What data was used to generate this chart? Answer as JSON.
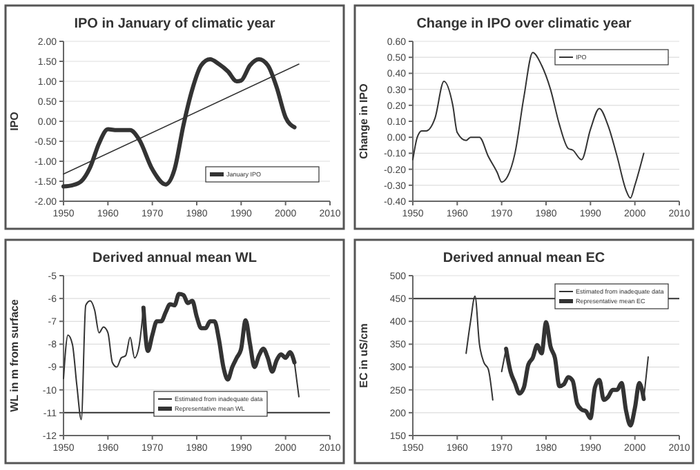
{
  "chart_data": [
    {
      "type": "line",
      "title": "IPO in January of climatic year",
      "ylabel": "IPO",
      "xlim": [
        1950,
        2010
      ],
      "xticks": [
        1950,
        1960,
        1970,
        1980,
        1990,
        2000,
        2010
      ],
      "ylim": [
        -2,
        2
      ],
      "yticks": [
        {
          "value": -2,
          "label": "-2.00"
        },
        {
          "value": -1.5,
          "label": "-1.50"
        },
        {
          "value": -1,
          "label": "-1.00"
        },
        {
          "value": -0.5,
          "label": "-0.50"
        },
        {
          "value": 0,
          "label": "0.00"
        },
        {
          "value": 0.5,
          "label": "0.50"
        },
        {
          "value": 1,
          "label": "1.00"
        },
        {
          "value": 1.5,
          "label": "1.50"
        },
        {
          "value": 2,
          "label": "2.00"
        }
      ],
      "grid": "y",
      "legend": "bottom right",
      "marker": "none",
      "series": [
        {
          "name": "January IPO",
          "color": "#333333",
          "x": [
            1950,
            1952,
            1954,
            1956,
            1958,
            1960,
            1962,
            1965,
            1967,
            1970,
            1973,
            1975,
            1977,
            1979,
            1981,
            1983,
            1985,
            1987,
            1989,
            1990,
            1992,
            1994,
            1996,
            1998,
            2000,
            2002
          ],
          "values": [
            -1.63,
            -1.6,
            -1.5,
            -1.15,
            -0.55,
            -0.2,
            -0.22,
            -0.22,
            -0.45,
            -1.2,
            -1.58,
            -1.2,
            -0.1,
            0.8,
            1.4,
            1.55,
            1.43,
            1.25,
            1.0,
            1.02,
            1.4,
            1.55,
            1.4,
            0.85,
            0.1,
            -0.15
          ]
        },
        {
          "type": "line",
          "color": "#333333",
          "x": [
            1950,
            2003
          ],
          "values": [
            -1.32,
            1.43
          ]
        }
      ]
    },
    {
      "type": "line",
      "title": "Change in IPO over climatic year",
      "ylabel": "Change in IPO",
      "xlim": [
        1950,
        2010
      ],
      "xticks": [
        1950,
        1960,
        1970,
        1980,
        1990,
        2000,
        2010
      ],
      "ylim": [
        -0.4,
        0.6
      ],
      "yticks": [
        {
          "value": -0.4,
          "label": "-0.40"
        },
        {
          "value": -0.3,
          "label": "-0.30"
        },
        {
          "value": -0.2,
          "label": "-0.20"
        },
        {
          "value": -0.1,
          "label": "-0.10"
        },
        {
          "value": 0,
          "label": "0.00"
        },
        {
          "value": 0.1,
          "label": "0.10"
        },
        {
          "value": 0.2,
          "label": "0.20"
        },
        {
          "value": 0.3,
          "label": "0.30"
        },
        {
          "value": 0.4,
          "label": "0.40"
        },
        {
          "value": 0.5,
          "label": "0.50"
        },
        {
          "value": 0.6,
          "label": "0.60"
        }
      ],
      "grid": "y",
      "legend": "top right",
      "marker": "none",
      "series": [
        {
          "name": "IPO",
          "color": "#333333",
          "x": [
            1950,
            1951,
            1952,
            1953,
            1955,
            1957,
            1959,
            1960,
            1962,
            1963,
            1965,
            1967,
            1969,
            1970,
            1971,
            1973,
            1975,
            1977,
            1979,
            1981,
            1983,
            1985,
            1986,
            1988,
            1990,
            1992,
            1994,
            1996,
            1998,
            1999,
            2000,
            2002
          ],
          "values": [
            -0.14,
            0.0,
            0.04,
            0.04,
            0.12,
            0.35,
            0.2,
            0.03,
            -0.02,
            0.0,
            0.0,
            -0.12,
            -0.22,
            -0.28,
            -0.26,
            -0.1,
            0.25,
            0.53,
            0.45,
            0.3,
            0.08,
            -0.07,
            -0.08,
            -0.14,
            0.05,
            0.18,
            0.07,
            -0.12,
            -0.33,
            -0.38,
            -0.3,
            -0.1
          ]
        }
      ]
    },
    {
      "type": "line",
      "title": "Derived annual mean WL",
      "ylabel": "WL in m from surface",
      "xlim": [
        1950,
        2010
      ],
      "xticks": [
        1950,
        1960,
        1970,
        1980,
        1990,
        2000,
        2010
      ],
      "ylim": [
        -12,
        -5
      ],
      "yticks": [
        -12,
        -11,
        -10,
        -9,
        -8,
        -7,
        -6,
        -5
      ],
      "grid": "y",
      "legend": "bottom",
      "marker": "none",
      "ref_lines": [
        {
          "axis": "y",
          "value": -11,
          "color": "#333333"
        }
      ],
      "series": [
        {
          "name": "Estimated from inadequate data",
          "color": "#333333",
          "x": [
            1950,
            1951,
            1952,
            1953,
            1954,
            1955,
            1956,
            1957,
            1958,
            1959,
            1960,
            1961,
            1962,
            1963,
            1964,
            1965,
            1966,
            1967,
            1968,
            1969,
            2002,
            2003
          ],
          "values": [
            -9.5,
            -7.6,
            -8.0,
            -9.8,
            -11.3,
            -6.3,
            -6.1,
            -6.5,
            -7.5,
            -7.25,
            -7.5,
            -8.8,
            -9.0,
            -8.6,
            -8.5,
            -7.7,
            -8.6,
            -8.1,
            -6.4,
            null,
            -8.8,
            -10.3
          ]
        },
        {
          "name": "Representative mean WL",
          "color": "#333333",
          "x": [
            1968,
            1969,
            1970,
            1971,
            1972,
            1973,
            1974,
            1975,
            1976,
            1977,
            1978,
            1979,
            1980,
            1981,
            1982,
            1983,
            1984,
            1985,
            1986,
            1987,
            1988,
            1989,
            1990,
            1991,
            1992,
            1993,
            1994,
            1995,
            1996,
            1997,
            1998,
            1999,
            2000,
            2001,
            2002
          ],
          "values": [
            -6.4,
            -8.3,
            -7.6,
            -7.0,
            -7.0,
            -6.6,
            -6.25,
            -6.3,
            -5.8,
            -5.85,
            -6.2,
            -6.1,
            -6.8,
            -7.3,
            -7.3,
            -7.0,
            -7.0,
            -7.8,
            -9.0,
            -9.55,
            -9.0,
            -8.6,
            -8.2,
            -6.95,
            -8.0,
            -9.0,
            -8.5,
            -8.2,
            -8.6,
            -9.2,
            -8.7,
            -8.45,
            -8.6,
            -8.35,
            -8.8
          ]
        }
      ]
    },
    {
      "type": "line",
      "title": "Derived annual mean EC",
      "ylabel": "EC in uS/cm",
      "xlim": [
        1950,
        2010
      ],
      "xticks": [
        1950,
        1960,
        1970,
        1980,
        1990,
        2000,
        2010
      ],
      "ylim": [
        150,
        500
      ],
      "yticks": [
        150,
        200,
        250,
        300,
        350,
        400,
        450,
        500
      ],
      "grid": "y",
      "legend": "top right",
      "marker": "none",
      "ref_lines": [
        {
          "axis": "y",
          "value": 450,
          "color": "#333333"
        }
      ],
      "series": [
        {
          "name": "Estimated from inadequate data",
          "color": "#333333",
          "x": [
            1962,
            1963,
            1964,
            1965,
            1966,
            1967,
            1968,
            1969,
            1970,
            1971,
            1972,
            2002,
            2003
          ],
          "values": [
            330,
            400,
            455,
            350,
            310,
            295,
            228,
            null,
            290,
            340,
            null,
            230,
            322
          ]
        },
        {
          "name": "Representative mean EC",
          "color": "#333333",
          "x": [
            1971,
            1972,
            1973,
            1974,
            1975,
            1976,
            1977,
            1978,
            1979,
            1980,
            1981,
            1982,
            1983,
            1984,
            1985,
            1986,
            1987,
            1988,
            1989,
            1990,
            1991,
            1992,
            1993,
            1994,
            1995,
            1996,
            1997,
            1998,
            1999,
            2000,
            2001,
            2002
          ],
          "values": [
            340,
            290,
            265,
            242,
            255,
            305,
            320,
            348,
            330,
            398,
            345,
            320,
            258,
            262,
            278,
            270,
            220,
            207,
            203,
            188,
            255,
            272,
            228,
            235,
            250,
            250,
            265,
            205,
            172,
            210,
            265,
            230
          ]
        }
      ]
    }
  ]
}
